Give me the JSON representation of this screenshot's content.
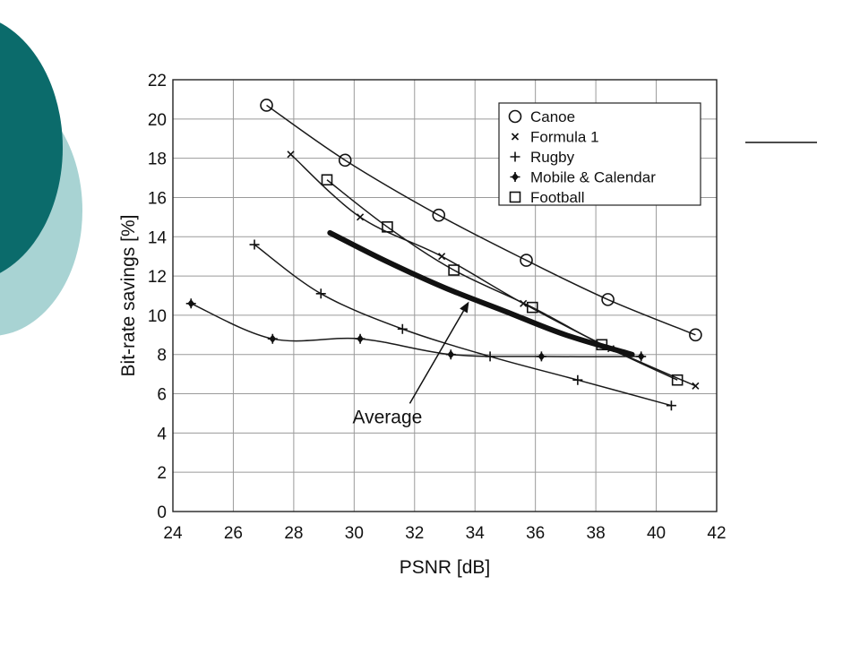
{
  "slide": {
    "decor_colors": [
      "#0b6b6b",
      "#a8d3d3"
    ]
  },
  "chart_data": {
    "type": "line",
    "xlabel": "PSNR [dB]",
    "ylabel": "Bit-rate savings [%]",
    "xlim": [
      24,
      42
    ],
    "ylim": [
      0,
      22
    ],
    "xticks": [
      24,
      26,
      28,
      30,
      32,
      34,
      36,
      38,
      40,
      42
    ],
    "yticks": [
      0,
      2,
      4,
      6,
      8,
      10,
      12,
      14,
      16,
      18,
      20,
      22
    ],
    "grid": true,
    "legend_position": "top-right",
    "series": [
      {
        "name": "Canoe",
        "marker": "circle",
        "x": [
          27.1,
          29.7,
          32.8,
          35.7,
          38.4,
          41.3
        ],
        "y": [
          20.7,
          17.9,
          15.1,
          12.8,
          10.8,
          9.0
        ]
      },
      {
        "name": "Formula 1",
        "marker": "x",
        "x": [
          27.9,
          30.2,
          32.9,
          35.6,
          38.5,
          41.3
        ],
        "y": [
          18.2,
          15.0,
          13.0,
          10.6,
          8.3,
          6.4
        ]
      },
      {
        "name": "Rugby",
        "marker": "plus",
        "x": [
          26.7,
          28.9,
          31.6,
          34.5,
          37.4,
          40.5
        ],
        "y": [
          13.6,
          11.1,
          9.3,
          7.9,
          6.7,
          5.4
        ]
      },
      {
        "name": "Mobile & Calendar",
        "marker": "filled-plus",
        "x": [
          24.6,
          27.3,
          30.2,
          33.2,
          36.2,
          39.5
        ],
        "y": [
          10.6,
          8.8,
          8.8,
          8.0,
          7.9,
          7.9
        ]
      },
      {
        "name": "Football",
        "marker": "square",
        "x": [
          29.1,
          31.1,
          33.3,
          35.9,
          38.2,
          40.7
        ],
        "y": [
          16.9,
          14.5,
          12.3,
          10.4,
          8.5,
          6.7
        ]
      }
    ],
    "average": {
      "x": [
        29.2,
        31.0,
        33.0,
        35.0,
        37.0,
        39.2
      ],
      "y": [
        14.2,
        12.8,
        11.4,
        10.2,
        9.0,
        8.0
      ]
    },
    "annotations": [
      {
        "text": "Average",
        "at": [
          31.1,
          4.5
        ],
        "arrow_to": [
          33.8,
          10.7
        ]
      }
    ]
  }
}
